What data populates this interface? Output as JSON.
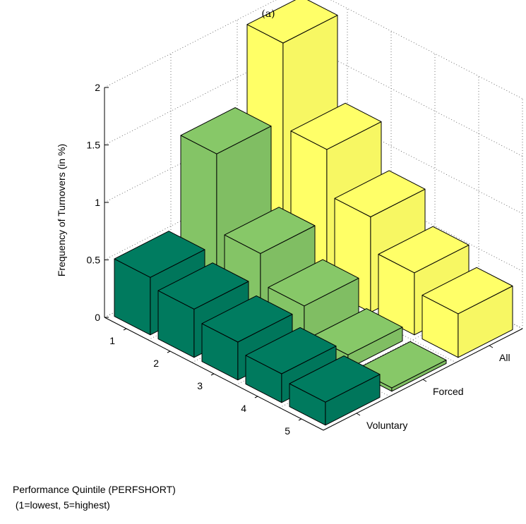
{
  "chart_data": {
    "type": "bar3d",
    "title": "(a)",
    "ylabel": "Frequency of Turnovers (in %)",
    "xlabel_line1": "Performance Quintile (PERFSHORT)",
    "xlabel_line2": " (1=lowest, 5=highest)",
    "categories": [
      "1",
      "2",
      "3",
      "4",
      "5"
    ],
    "z_ticks": [
      "0",
      "0.5",
      "1",
      "1.5",
      "2"
    ],
    "zlim": [
      0,
      2
    ],
    "series": [
      {
        "name": "Voluntary",
        "values": [
          0.5,
          0.42,
          0.33,
          0.25,
          0.2
        ],
        "color": "#007a5e"
      },
      {
        "name": "Forced",
        "values": [
          1.28,
          0.61,
          0.35,
          0.12,
          0.03
        ],
        "color": "#84c466"
      },
      {
        "name": "All",
        "values": [
          1.95,
          1.22,
          0.83,
          0.54,
          0.38
        ],
        "color": "#ffff66"
      }
    ]
  }
}
